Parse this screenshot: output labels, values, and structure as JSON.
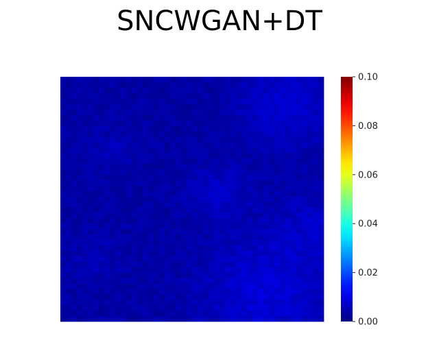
{
  "chart_data": {
    "type": "heatmap",
    "title": "SNCWGAN+DT",
    "xlabel": "",
    "ylabel": "",
    "colormap": "jet",
    "colorbar": {
      "min": 0.0,
      "max": 0.1,
      "ticks": [
        0.0,
        0.02,
        0.04,
        0.06,
        0.08,
        0.1
      ],
      "tick_labels": [
        "0.00",
        "0.02",
        "0.04",
        "0.06",
        "0.08",
        "0.10"
      ]
    },
    "value_range": [
      0.0,
      0.015
    ],
    "grid": false,
    "axes_visible": false,
    "base_value": 0.002,
    "blobs": [
      {
        "cx": 0.86,
        "cy": 0.12,
        "r": 0.17,
        "amp": 0.0045
      },
      {
        "cx": 0.6,
        "cy": 0.47,
        "r": 0.11,
        "amp": 0.0035
      },
      {
        "cx": 0.78,
        "cy": 0.88,
        "r": 0.24,
        "amp": 0.005
      },
      {
        "cx": 0.96,
        "cy": 0.6,
        "r": 0.14,
        "amp": 0.003
      },
      {
        "cx": 0.2,
        "cy": 0.3,
        "r": 0.1,
        "amp": 0.002
      },
      {
        "cx": 0.12,
        "cy": 0.75,
        "r": 0.12,
        "amp": 0.0015
      }
    ]
  }
}
